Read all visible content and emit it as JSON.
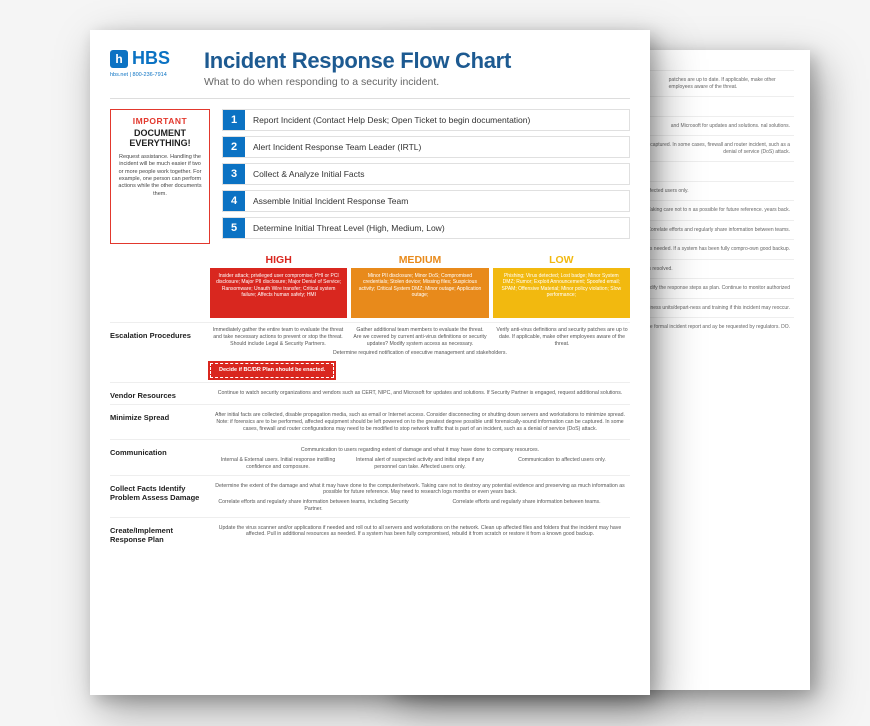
{
  "brand": {
    "name": "HBS",
    "contact": "hbs.net  |  800-236-7914",
    "logo_color": "#0b72c3"
  },
  "title": "Incident Response Flow Chart",
  "subtitle": "What to do when responding to a security incident.",
  "important": {
    "tag": "IMPORTANT",
    "heading": "DOCUMENT EVERYTHING!",
    "body": "Request assistance. Handling the incident will be much easier if two or more people work together. For example, one person can perform actions while the other documents them.",
    "border_color": "#e2382d"
  },
  "steps": [
    {
      "n": "1",
      "label": "Report Incident (Contact Help Desk; Open Ticket to begin documentation)"
    },
    {
      "n": "2",
      "label": "Alert Incident Response Team Leader (IRTL)"
    },
    {
      "n": "3",
      "label": "Collect & Analyze Initial Facts"
    },
    {
      "n": "4",
      "label": "Assemble Initial Incident Response Team"
    },
    {
      "n": "5",
      "label": "Determine Initial Threat Level (High, Medium, Low)"
    }
  ],
  "levels": {
    "high": {
      "title": "HIGH",
      "color": "#d9271f",
      "desc": "Insider attack; privileged user compromise; PHI or PCI disclosure; Major PII disclosure; Major Denial of Service; Ransomware; Unauth Wire transfer; Critical system failure; Affects human safety; HMI"
    },
    "medium": {
      "title": "MEDIUM",
      "color": "#e88a1b",
      "desc": "Minor PII disclosure; Minor DoS; Compromised credentials; Stolen device; Missing files; Suspicious activity; Critical System DMZ; Minor outage; Application outage;"
    },
    "low": {
      "title": "LOW",
      "color": "#f2b90f",
      "desc": "Phishing; Virus detected; Lost badge; Minor System DMZ; Rumor; Exploit Announcement; Spoofed email; SPAM; Offensive Material; Minor policy violation; Slow performance;"
    }
  },
  "sections": {
    "escalation": {
      "label": "Escalation Procedures",
      "high": "Immediately gather the entire team to evaluate the threat and take necessary actions to prevent or stop the threat. Should include Legal & Security Partners.",
      "medium": "Gather additional team members to evaluate the threat. Are we covered by current anti-virus definitions or security updates? Modify system access as necessary.",
      "low": "Verify anti-virus definitions and security patches are up to date. If applicable, make other employees aware of the threat.",
      "footer": "Determine required notification of executive management and stakeholders.",
      "bcdr": "Decide if BC/DR Plan should be enacted."
    },
    "vendor": {
      "label": "Vendor Resources",
      "body": "Continue to watch security organizations and vendors such as CERT, NIPC, and Microsoft for updates and solutions. If Security Partner is engaged, request additional solutions."
    },
    "minimize": {
      "label": "Minimize Spread",
      "body": "After initial facts are collected, disable propagation media, such as email or Internet access. Consider disconnecting or shutting down servers and workstations to minimize spread. Note: if forensics are to be performed, affected equipment should be left powered on to the greatest degree possible until forensically-sound information can be captured. In some cases, firewall and router configurations may need to be modified to stop network traffic that is part of an incident, such as a denial of service (DoS) attack."
    },
    "communication": {
      "label": "Communication",
      "top": "Communication to users regarding extent of damage and what it may have done to company resources.",
      "high": "Internal & External users. Initial response instilling confidence and composure.",
      "medium": "Internal alert of suspected activity and initial steps if any personnel can take. Affected users only.",
      "low": "Communication to affected users only."
    },
    "collect": {
      "label": "Collect Facts Identify Problem Assess Damage",
      "top": "Determine the extent of the damage and what it may have done to the computer/network. Taking care not to destroy any potential evidence and preserving as much information as possible for future reference. May need to research logs months or even years back.",
      "left": "Correlate efforts and regularly share information between teams, including Security Partner.",
      "right": "Correlate efforts and regularly share information between teams."
    },
    "response": {
      "label": "Create/Implement Response Plan",
      "body": "Update the virus scanner and/or applications if needed and roll out to all servers and workstations on the network. Clean up affected files and folders that the incident may have affected. Pull in additional resources as needed. If a system has been fully compromised, rebuild it from scratch or restore it from a known good backup."
    }
  },
  "back_page": {
    "r1": "patches are up to date. If applicable, make other employees aware of the threat.",
    "r1b": "ent and stakeholders.",
    "r2": "and Microsoft for updates and solutions. nal solutions.",
    "r3": "rnet access. Consider disconnecting or shutting be performed, affected equipment should be left an be captured. In some cases, firewall and router incident, such as a denial of service (DoS) attack.",
    "r4": "ay have done to company resources.",
    "r4a": "nd ke.",
    "r4b": "Communication to affected users only.",
    "r5": "computer/network. Taking care not to n as possible for future reference. years back.",
    "r5b": "Correlate efforts and regularly share information between teams.",
    "r6": "nd workstations on the network. Clean up affect-es as needed. If a system has been fully compro-own good backup.",
    "r7": "Follow-up communication about incident and how it was resolved.",
    "r8": "orking. Modify the response steps as plan. Continue to monitor authorized",
    "r9": "nd test functionality with business units/depart-ness and training if this incident may reoccur.",
    "r10": "ion. Should include formal incident report and ay be requested by regulators. DO."
  },
  "colors": {
    "primary": "#0b72c3",
    "high": "#d9271f",
    "medium": "#e88a1b",
    "low": "#f2b90f",
    "background": "#f5f5f5",
    "text": "#222222"
  },
  "typography": {
    "title_fontsize": 22,
    "body_fontsize": 6.5,
    "font_family": "sans-serif"
  }
}
